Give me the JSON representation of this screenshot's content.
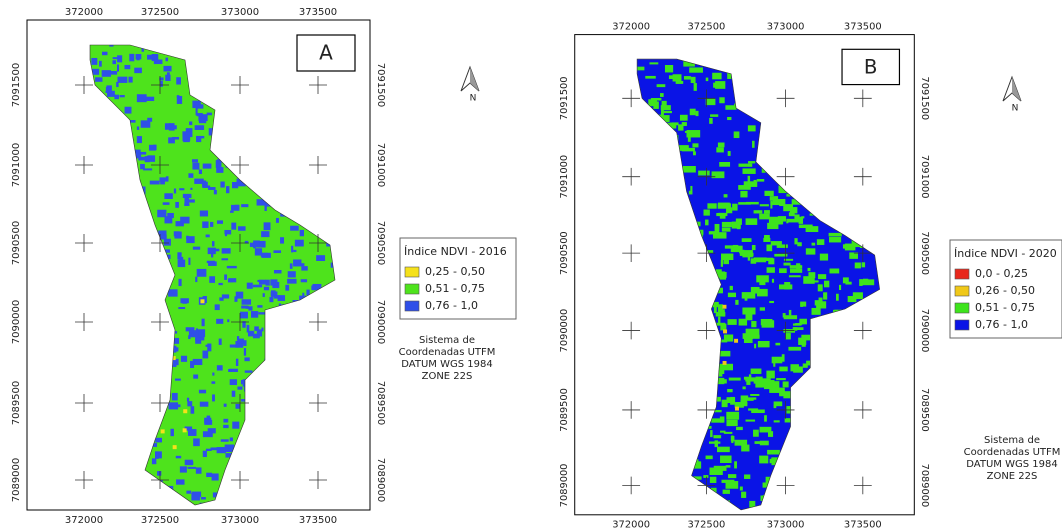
{
  "panels": [
    {
      "label": "A",
      "north": "N",
      "x_labels": [
        "372000",
        "372500",
        "373000",
        "373500"
      ],
      "y_labels": [
        "7091500",
        "7091000",
        "7090500",
        "7090000",
        "7089500",
        "7089000"
      ],
      "legend": {
        "title": "Índice NDVI - 2016",
        "items": [
          {
            "label": "0,25 - 0,50",
            "color": "#f5e11a"
          },
          {
            "label": "0,51 - 0,75",
            "color": "#4ee31c"
          },
          {
            "label": "0,76 - 1,0",
            "color": "#2f4fe8"
          }
        ]
      },
      "crs": [
        "Sistema de",
        "Coordenadas UTFM",
        "DATUM WGS 1984",
        "ZONE 22S"
      ]
    },
    {
      "label": "B",
      "north": "N",
      "x_labels": [
        "372000",
        "372500",
        "373000",
        "373500"
      ],
      "y_labels": [
        "7091500",
        "7091000",
        "7090500",
        "7090000",
        "7089500",
        "7089000"
      ],
      "legend": {
        "title": "Índice NDVI - 2020",
        "items": [
          {
            "label": "0,0 - 0,25",
            "color": "#e8281c"
          },
          {
            "label": "0,26 - 0,50",
            "color": "#f0c818"
          },
          {
            "label": "0,51 - 0,75",
            "color": "#3ee41c"
          },
          {
            "label": "0,76 - 1,0",
            "color": "#0a14e6"
          }
        ]
      },
      "crs": [
        "Sistema de",
        "Coordenadas UTFM",
        "DATUM WGS 1984",
        "ZONE 22S"
      ]
    }
  ]
}
